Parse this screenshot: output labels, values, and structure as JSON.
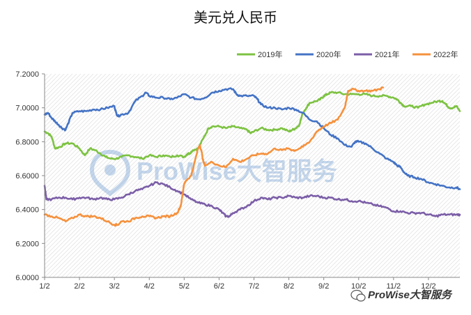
{
  "chart_data": {
    "type": "line",
    "title": "美元兑人民币",
    "xlabel": "",
    "ylabel": "",
    "ylim": [
      6.0,
      7.2
    ],
    "yticks": [
      "6.0000",
      "6.2000",
      "6.4000",
      "6.6000",
      "6.8000",
      "7.0000",
      "7.2000"
    ],
    "xticks": [
      "1/2",
      "2/2",
      "3/2",
      "4/2",
      "5/2",
      "6/2",
      "7/2",
      "8/2",
      "9/2",
      "10/2",
      "11/2",
      "12/2"
    ],
    "xtick_month_index": [
      0,
      1,
      2,
      3,
      4,
      5,
      6,
      7,
      8,
      9,
      10,
      11
    ],
    "xlim_months": [
      0,
      11.9
    ],
    "grid": false,
    "legend_position": "top-right",
    "series": [
      {
        "name": "2019年",
        "color": "#7dc242",
        "points": [
          [
            0.0,
            6.86
          ],
          [
            0.1,
            6.85
          ],
          [
            0.2,
            6.83
          ],
          [
            0.3,
            6.76
          ],
          [
            0.45,
            6.77
          ],
          [
            0.6,
            6.79
          ],
          [
            0.8,
            6.79
          ],
          [
            1.0,
            6.76
          ],
          [
            1.15,
            6.72
          ],
          [
            1.3,
            6.76
          ],
          [
            1.45,
            6.75
          ],
          [
            1.6,
            6.73
          ],
          [
            1.75,
            6.71
          ],
          [
            1.9,
            6.7
          ],
          [
            2.05,
            6.7
          ],
          [
            2.2,
            6.71
          ],
          [
            2.4,
            6.72
          ],
          [
            2.6,
            6.71
          ],
          [
            2.8,
            6.7
          ],
          [
            3.0,
            6.72
          ],
          [
            3.2,
            6.71
          ],
          [
            3.4,
            6.72
          ],
          [
            3.6,
            6.71
          ],
          [
            3.8,
            6.72
          ],
          [
            4.0,
            6.71
          ],
          [
            4.1,
            6.73
          ],
          [
            4.15,
            6.73
          ],
          [
            4.25,
            6.75
          ],
          [
            4.4,
            6.76
          ],
          [
            4.55,
            6.82
          ],
          [
            4.7,
            6.88
          ],
          [
            4.8,
            6.89
          ],
          [
            5.0,
            6.89
          ],
          [
            5.2,
            6.88
          ],
          [
            5.4,
            6.89
          ],
          [
            5.6,
            6.88
          ],
          [
            5.8,
            6.87
          ],
          [
            5.9,
            6.85
          ],
          [
            6.0,
            6.86
          ],
          [
            6.2,
            6.88
          ],
          [
            6.4,
            6.87
          ],
          [
            6.6,
            6.87
          ],
          [
            6.8,
            6.88
          ],
          [
            7.0,
            6.86
          ],
          [
            7.1,
            6.87
          ],
          [
            7.2,
            6.88
          ],
          [
            7.3,
            6.9
          ],
          [
            7.4,
            6.97
          ],
          [
            7.5,
            7.0
          ],
          [
            7.6,
            7.03
          ],
          [
            7.8,
            7.04
          ],
          [
            7.9,
            7.05
          ],
          [
            8.0,
            7.07
          ],
          [
            8.1,
            7.08
          ],
          [
            8.2,
            7.09
          ],
          [
            8.4,
            7.09
          ],
          [
            8.6,
            7.08
          ],
          [
            8.8,
            7.08
          ],
          [
            9.0,
            7.08
          ],
          [
            9.2,
            7.08
          ],
          [
            9.4,
            7.07
          ],
          [
            9.6,
            7.07
          ],
          [
            9.8,
            7.07
          ],
          [
            10.0,
            7.06
          ],
          [
            10.1,
            7.05
          ],
          [
            10.2,
            7.03
          ],
          [
            10.3,
            7.01
          ],
          [
            10.5,
            7.01
          ],
          [
            10.7,
            7.0
          ],
          [
            10.9,
            7.02
          ],
          [
            11.1,
            7.03
          ],
          [
            11.3,
            7.04
          ],
          [
            11.4,
            7.04
          ],
          [
            11.5,
            7.02
          ],
          [
            11.6,
            7.0
          ],
          [
            11.7,
            7.0
          ],
          [
            11.8,
            7.01
          ],
          [
            11.9,
            6.98
          ]
        ]
      },
      {
        "name": "2020年",
        "color": "#4473c5",
        "points": [
          [
            0.0,
            6.96
          ],
          [
            0.1,
            6.97
          ],
          [
            0.2,
            6.94
          ],
          [
            0.3,
            6.92
          ],
          [
            0.4,
            6.9
          ],
          [
            0.5,
            6.88
          ],
          [
            0.6,
            6.87
          ],
          [
            0.7,
            6.92
          ],
          [
            0.8,
            6.97
          ],
          [
            1.0,
            6.98
          ],
          [
            1.2,
            6.98
          ],
          [
            1.4,
            6.99
          ],
          [
            1.6,
            6.99
          ],
          [
            1.8,
            7.0
          ],
          [
            2.0,
            7.01
          ],
          [
            2.05,
            6.97
          ],
          [
            2.1,
            6.95
          ],
          [
            2.2,
            6.96
          ],
          [
            2.4,
            6.97
          ],
          [
            2.6,
            7.04
          ],
          [
            2.8,
            7.07
          ],
          [
            2.9,
            7.09
          ],
          [
            3.0,
            7.07
          ],
          [
            3.2,
            7.06
          ],
          [
            3.4,
            7.06
          ],
          [
            3.6,
            7.05
          ],
          [
            3.8,
            7.06
          ],
          [
            4.0,
            7.08
          ],
          [
            4.2,
            7.06
          ],
          [
            4.4,
            7.05
          ],
          [
            4.6,
            7.06
          ],
          [
            4.8,
            7.09
          ],
          [
            5.0,
            7.1
          ],
          [
            5.2,
            7.11
          ],
          [
            5.4,
            7.11
          ],
          [
            5.5,
            7.08
          ],
          [
            5.6,
            7.07
          ],
          [
            5.8,
            7.07
          ],
          [
            6.0,
            7.07
          ],
          [
            6.1,
            7.05
          ],
          [
            6.2,
            7.02
          ],
          [
            6.4,
            7.0
          ],
          [
            6.6,
            7.0
          ],
          [
            6.8,
            6.99
          ],
          [
            7.0,
            7.0
          ],
          [
            7.2,
            6.99
          ],
          [
            7.4,
            6.97
          ],
          [
            7.6,
            6.93
          ],
          [
            7.8,
            6.92
          ],
          [
            8.0,
            6.88
          ],
          [
            8.2,
            6.84
          ],
          [
            8.4,
            6.82
          ],
          [
            8.6,
            6.78
          ],
          [
            8.8,
            6.77
          ],
          [
            8.9,
            6.8
          ],
          [
            9.0,
            6.8
          ],
          [
            9.2,
            6.79
          ],
          [
            9.4,
            6.76
          ],
          [
            9.6,
            6.73
          ],
          [
            9.8,
            6.7
          ],
          [
            10.0,
            6.68
          ],
          [
            10.1,
            6.66
          ],
          [
            10.2,
            6.65
          ],
          [
            10.3,
            6.62
          ],
          [
            10.4,
            6.6
          ],
          [
            10.6,
            6.59
          ],
          [
            10.8,
            6.58
          ],
          [
            11.0,
            6.56
          ],
          [
            11.2,
            6.55
          ],
          [
            11.4,
            6.54
          ],
          [
            11.6,
            6.53
          ],
          [
            11.8,
            6.53
          ],
          [
            11.9,
            6.52
          ]
        ]
      },
      {
        "name": "2021年",
        "color": "#7b5ea7",
        "points": [
          [
            0.0,
            6.54
          ],
          [
            0.05,
            6.46
          ],
          [
            0.2,
            6.46
          ],
          [
            0.4,
            6.47
          ],
          [
            0.6,
            6.47
          ],
          [
            0.8,
            6.46
          ],
          [
            1.0,
            6.47
          ],
          [
            1.2,
            6.47
          ],
          [
            1.4,
            6.46
          ],
          [
            1.6,
            6.47
          ],
          [
            1.8,
            6.46
          ],
          [
            2.0,
            6.46
          ],
          [
            2.2,
            6.47
          ],
          [
            2.4,
            6.49
          ],
          [
            2.6,
            6.51
          ],
          [
            2.8,
            6.52
          ],
          [
            3.0,
            6.54
          ],
          [
            3.2,
            6.56
          ],
          [
            3.4,
            6.55
          ],
          [
            3.6,
            6.53
          ],
          [
            3.8,
            6.51
          ],
          [
            4.0,
            6.49
          ],
          [
            4.2,
            6.46
          ],
          [
            4.4,
            6.44
          ],
          [
            4.6,
            6.43
          ],
          [
            4.8,
            6.42
          ],
          [
            5.0,
            6.4
          ],
          [
            5.1,
            6.38
          ],
          [
            5.2,
            6.36
          ],
          [
            5.3,
            6.36
          ],
          [
            5.4,
            6.38
          ],
          [
            5.6,
            6.4
          ],
          [
            5.8,
            6.42
          ],
          [
            6.0,
            6.45
          ],
          [
            6.2,
            6.47
          ],
          [
            6.4,
            6.46
          ],
          [
            6.6,
            6.47
          ],
          [
            6.8,
            6.47
          ],
          [
            7.0,
            6.48
          ],
          [
            7.2,
            6.47
          ],
          [
            7.4,
            6.47
          ],
          [
            7.6,
            6.48
          ],
          [
            7.8,
            6.48
          ],
          [
            8.0,
            6.47
          ],
          [
            8.2,
            6.47
          ],
          [
            8.4,
            6.46
          ],
          [
            8.6,
            6.46
          ],
          [
            8.8,
            6.45
          ],
          [
            9.0,
            6.45
          ],
          [
            9.2,
            6.44
          ],
          [
            9.4,
            6.43
          ],
          [
            9.6,
            6.42
          ],
          [
            9.8,
            6.41
          ],
          [
            10.0,
            6.39
          ],
          [
            10.2,
            6.39
          ],
          [
            10.4,
            6.38
          ],
          [
            10.6,
            6.38
          ],
          [
            10.8,
            6.38
          ],
          [
            11.0,
            6.37
          ],
          [
            11.2,
            6.36
          ],
          [
            11.4,
            6.37
          ],
          [
            11.6,
            6.37
          ],
          [
            11.8,
            6.37
          ],
          [
            11.9,
            6.37
          ]
        ]
      },
      {
        "name": "2022年",
        "color": "#f5913d",
        "points": [
          [
            0.0,
            6.37
          ],
          [
            0.2,
            6.36
          ],
          [
            0.4,
            6.35
          ],
          [
            0.6,
            6.33
          ],
          [
            0.8,
            6.35
          ],
          [
            1.0,
            6.37
          ],
          [
            1.2,
            6.36
          ],
          [
            1.4,
            6.36
          ],
          [
            1.6,
            6.35
          ],
          [
            1.8,
            6.33
          ],
          [
            2.0,
            6.31
          ],
          [
            2.1,
            6.31
          ],
          [
            2.2,
            6.33
          ],
          [
            2.4,
            6.33
          ],
          [
            2.6,
            6.35
          ],
          [
            2.8,
            6.36
          ],
          [
            3.0,
            6.36
          ],
          [
            3.2,
            6.35
          ],
          [
            3.4,
            6.36
          ],
          [
            3.6,
            6.36
          ],
          [
            3.8,
            6.38
          ],
          [
            3.9,
            6.42
          ],
          [
            4.0,
            6.55
          ],
          [
            4.05,
            6.57
          ],
          [
            4.2,
            6.6
          ],
          [
            4.3,
            6.68
          ],
          [
            4.4,
            6.76
          ],
          [
            4.45,
            6.78
          ],
          [
            4.5,
            6.74
          ],
          [
            4.55,
            6.68
          ],
          [
            4.6,
            6.66
          ],
          [
            4.8,
            6.68
          ],
          [
            5.0,
            6.66
          ],
          [
            5.2,
            6.65
          ],
          [
            5.4,
            6.7
          ],
          [
            5.6,
            6.68
          ],
          [
            5.8,
            6.7
          ],
          [
            6.0,
            6.72
          ],
          [
            6.2,
            6.73
          ],
          [
            6.4,
            6.73
          ],
          [
            6.6,
            6.76
          ],
          [
            6.8,
            6.75
          ],
          [
            7.0,
            6.76
          ],
          [
            7.1,
            6.75
          ],
          [
            7.2,
            6.75
          ],
          [
            7.4,
            6.77
          ],
          [
            7.6,
            6.8
          ],
          [
            7.8,
            6.86
          ],
          [
            8.0,
            6.89
          ],
          [
            8.2,
            6.91
          ],
          [
            8.4,
            6.93
          ],
          [
            8.6,
            7.0
          ],
          [
            8.7,
            7.1
          ],
          [
            8.8,
            7.11
          ],
          [
            9.0,
            7.1
          ],
          [
            9.2,
            7.1
          ],
          [
            9.4,
            7.1
          ],
          [
            9.6,
            7.11
          ],
          [
            9.7,
            7.12
          ]
        ]
      }
    ]
  },
  "watermark": {
    "text": "ProWise大智服务",
    "corner_text": "ProWise大智服务"
  }
}
